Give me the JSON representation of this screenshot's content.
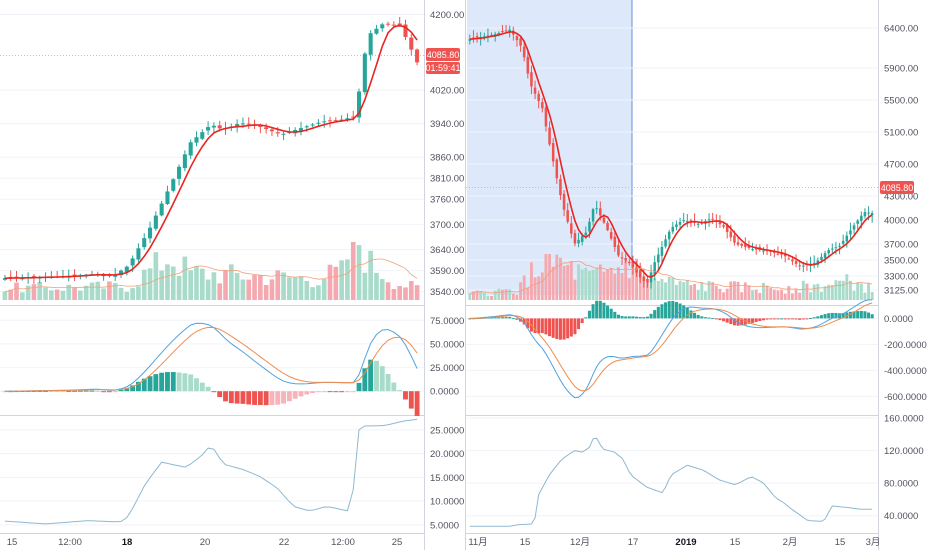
{
  "colors": {
    "up": "#26a69a",
    "down": "#ef5350",
    "up_volume": "#a8dbc9",
    "down_volume": "#f4a9b0",
    "ma": "#e8251f",
    "macd_line": "#4fa3e0",
    "signal_line": "#f08b4c",
    "indicator_line": "#8fb8d0",
    "highlight": "#dde9fb",
    "price_line": "#f4a9b0"
  },
  "chart_data": [
    {
      "type": "candlestick",
      "panel": "left-price",
      "price_label": "4085.80",
      "countdown_label": "01:59:41",
      "y_ticks": [
        "4200.00",
        "4020.00",
        "3940.00",
        "3860.00",
        "3810.00",
        "3760.00",
        "3700.00",
        "3640.00",
        "3590.00",
        "3540.00"
      ],
      "ylim": [
        3520,
        4225
      ],
      "moving_average": true,
      "volume_bars": true
    },
    {
      "type": "bar+line",
      "panel": "left-macd",
      "y_ticks": [
        "75.0000",
        "50.0000",
        "25.0000",
        "0.0000"
      ],
      "ylim": [
        -22,
        88
      ]
    },
    {
      "type": "line",
      "panel": "left-indicator",
      "y_ticks": [
        "25.0000",
        "20.0000",
        "15.0000",
        "10.0000",
        "5.0000"
      ],
      "ylim": [
        3.5,
        27.5
      ],
      "x_ticks": [
        "15",
        "12:00",
        "18",
        "20",
        "22",
        "12:00",
        "25"
      ],
      "x_ticks_bold": [
        "18"
      ]
    },
    {
      "type": "candlestick",
      "panel": "right-price",
      "price_label": "4085.80",
      "y_ticks": [
        "6400.00",
        "5900.00",
        "5500.00",
        "5100.00",
        "4700.00",
        "4300.00",
        "4000.00",
        "3700.00",
        "3500.00",
        "3300.00",
        "3125.00"
      ],
      "ylim": [
        3000,
        6700
      ],
      "moving_average": true,
      "volume_bars": true
    },
    {
      "type": "bar+line",
      "panel": "right-macd",
      "y_ticks": [
        "0.0000",
        "-200.0000",
        "-400.0000",
        "-600.0000"
      ],
      "ylim": [
        -720,
        80
      ]
    },
    {
      "type": "line",
      "panel": "right-indicator",
      "y_ticks": [
        "160.0000",
        "120.0000",
        "80.0000",
        "40.0000"
      ],
      "ylim": [
        20,
        160
      ],
      "x_ticks": [
        "11月",
        "15",
        "12月",
        "17",
        "2019",
        "15",
        "2月",
        "15",
        "3月"
      ],
      "x_ticks_bold": [
        "2019"
      ]
    }
  ]
}
